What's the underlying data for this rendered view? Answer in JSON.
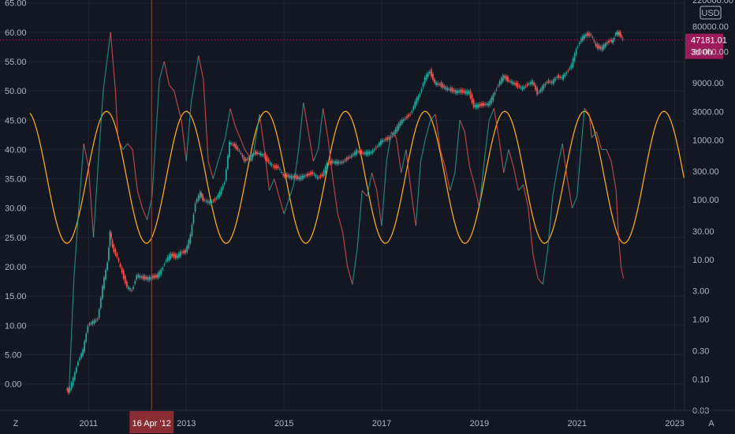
{
  "chart_data": {
    "type": "line",
    "currency": "USD",
    "left_axis": {
      "ticks": [
        "65.00",
        "60.00",
        "55.00",
        "50.00",
        "45.00",
        "40.00",
        "35.00",
        "30.00",
        "25.00",
        "20.00",
        "15.00",
        "10.00",
        "5.00",
        "0.00"
      ],
      "range": [
        -4.5,
        65.5
      ]
    },
    "right_axis": {
      "scale": "log",
      "ticks": [
        "220000.00",
        "80000.00",
        "30000.00",
        "9000.00",
        "3000.00",
        "1000.00",
        "300.00",
        "100.00",
        "30.00",
        "10.00",
        "3.00",
        "1.00",
        "0.30",
        "0.10",
        "0.03"
      ],
      "range": [
        0.03,
        220000
      ]
    },
    "x_axis": {
      "ticks": [
        "2011",
        "2013",
        "2015",
        "2017",
        "2019",
        "2021",
        "2023"
      ],
      "range": [
        2009.8,
        2023.2
      ]
    },
    "last_price": {
      "value": "47181.01",
      "countdown": "3d 0h"
    },
    "crosshair": {
      "date_label": "16 Apr '12",
      "x": 2012.29
    },
    "corner_labels": {
      "left": "Z",
      "right": "A"
    },
    "series": [
      {
        "kind": "price_candles",
        "color_up": "#26a69a",
        "color_down": "#ef5350",
        "points": [
          [
            2010.55,
            0.07
          ],
          [
            2010.6,
            0.06
          ],
          [
            2010.7,
            0.1
          ],
          [
            2010.8,
            0.2
          ],
          [
            2010.9,
            0.3
          ],
          [
            2011.0,
            0.8
          ],
          [
            2011.1,
            0.9
          ],
          [
            2011.2,
            1.0
          ],
          [
            2011.3,
            3.5
          ],
          [
            2011.4,
            9.0
          ],
          [
            2011.45,
            30.0
          ],
          [
            2011.5,
            16.0
          ],
          [
            2011.6,
            11.0
          ],
          [
            2011.7,
            6.0
          ],
          [
            2011.8,
            3.5
          ],
          [
            2011.9,
            3.0
          ],
          [
            2012.0,
            5.5
          ],
          [
            2012.1,
            5.0
          ],
          [
            2012.2,
            4.8
          ],
          [
            2012.3,
            5.0
          ],
          [
            2012.4,
            5.2
          ],
          [
            2012.5,
            6.5
          ],
          [
            2012.6,
            10.0
          ],
          [
            2012.7,
            12.0
          ],
          [
            2012.8,
            11.0
          ],
          [
            2012.9,
            13.0
          ],
          [
            2013.0,
            13.5
          ],
          [
            2013.1,
            25.0
          ],
          [
            2013.2,
            90.0
          ],
          [
            2013.3,
            130.0
          ],
          [
            2013.35,
            100.0
          ],
          [
            2013.5,
            90.0
          ],
          [
            2013.6,
            100.0
          ],
          [
            2013.7,
            130.0
          ],
          [
            2013.8,
            200.0
          ],
          [
            2013.9,
            900.0
          ],
          [
            2014.0,
            800.0
          ],
          [
            2014.1,
            650.0
          ],
          [
            2014.2,
            450.0
          ],
          [
            2014.3,
            500.0
          ],
          [
            2014.4,
            600.0
          ],
          [
            2014.5,
            600.0
          ],
          [
            2014.6,
            550.0
          ],
          [
            2014.7,
            430.0
          ],
          [
            2014.8,
            350.0
          ],
          [
            2014.9,
            350.0
          ],
          [
            2015.0,
            250.0
          ],
          [
            2015.1,
            250.0
          ],
          [
            2015.2,
            240.0
          ],
          [
            2015.3,
            230.0
          ],
          [
            2015.5,
            260.0
          ],
          [
            2015.6,
            280.0
          ],
          [
            2015.7,
            230.0
          ],
          [
            2015.8,
            260.0
          ],
          [
            2015.9,
            400.0
          ],
          [
            2016.0,
            430.0
          ],
          [
            2016.2,
            420.0
          ],
          [
            2016.4,
            550.0
          ],
          [
            2016.5,
            650.0
          ],
          [
            2016.6,
            600.0
          ],
          [
            2016.8,
            620.0
          ],
          [
            2016.9,
            750.0
          ],
          [
            2017.0,
            950.0
          ],
          [
            2017.2,
            1100.0
          ],
          [
            2017.4,
            2000.0
          ],
          [
            2017.6,
            2700.0
          ],
          [
            2017.7,
            4300.0
          ],
          [
            2017.8,
            6000.0
          ],
          [
            2017.9,
            11000.0
          ],
          [
            2018.0,
            14000.0
          ],
          [
            2018.1,
            9000.0
          ],
          [
            2018.2,
            8500.0
          ],
          [
            2018.3,
            7500.0
          ],
          [
            2018.4,
            7000.0
          ],
          [
            2018.5,
            6500.0
          ],
          [
            2018.6,
            6500.0
          ],
          [
            2018.7,
            6400.0
          ],
          [
            2018.8,
            6300.0
          ],
          [
            2018.9,
            3700.0
          ],
          [
            2019.0,
            3800.0
          ],
          [
            2019.2,
            4000.0
          ],
          [
            2019.3,
            5500.0
          ],
          [
            2019.4,
            8500.0
          ],
          [
            2019.5,
            11500.0
          ],
          [
            2019.6,
            10000.0
          ],
          [
            2019.7,
            9000.0
          ],
          [
            2019.8,
            8000.0
          ],
          [
            2019.9,
            7300.0
          ],
          [
            2020.0,
            8500.0
          ],
          [
            2020.1,
            9500.0
          ],
          [
            2020.2,
            6000.0
          ],
          [
            2020.3,
            7500.0
          ],
          [
            2020.4,
            9500.0
          ],
          [
            2020.5,
            9200.0
          ],
          [
            2020.6,
            11500.0
          ],
          [
            2020.7,
            11000.0
          ],
          [
            2020.8,
            13500.0
          ],
          [
            2020.9,
            18000.0
          ],
          [
            2021.0,
            33000.0
          ],
          [
            2021.1,
            50000.0
          ],
          [
            2021.2,
            58000.0
          ],
          [
            2021.3,
            57000.0
          ],
          [
            2021.4,
            37000.0
          ],
          [
            2021.5,
            34000.0
          ],
          [
            2021.6,
            40000.0
          ],
          [
            2021.7,
            47000.0
          ],
          [
            2021.75,
            45000.0
          ],
          [
            2021.8,
            62000.0
          ],
          [
            2021.85,
            61000.0
          ],
          [
            2021.9,
            57000.0
          ],
          [
            2021.95,
            47181.0
          ]
        ]
      },
      {
        "kind": "oscillator_left_axis",
        "color_up": "#26a69a",
        "color_down": "#ef5350",
        "points": [
          [
            2010.6,
            -1.0
          ],
          [
            2010.7,
            18.0
          ],
          [
            2010.8,
            30.0
          ],
          [
            2010.9,
            41.0
          ],
          [
            2011.0,
            37.0
          ],
          [
            2011.1,
            25.0
          ],
          [
            2011.2,
            38.0
          ],
          [
            2011.3,
            50.0
          ],
          [
            2011.45,
            60.0
          ],
          [
            2011.55,
            50.0
          ],
          [
            2011.6,
            42.0
          ],
          [
            2011.7,
            40.0
          ],
          [
            2011.8,
            41.0
          ],
          [
            2011.9,
            40.0
          ],
          [
            2012.0,
            33.0
          ],
          [
            2012.1,
            30.0
          ],
          [
            2012.2,
            28.0
          ],
          [
            2012.3,
            32.0
          ],
          [
            2012.45,
            52.0
          ],
          [
            2012.55,
            55.0
          ],
          [
            2012.65,
            51.0
          ],
          [
            2012.75,
            50.0
          ],
          [
            2012.9,
            45.0
          ],
          [
            2013.0,
            38.0
          ],
          [
            2013.1,
            48.0
          ],
          [
            2013.25,
            56.0
          ],
          [
            2013.35,
            52.0
          ],
          [
            2013.45,
            38.0
          ],
          [
            2013.55,
            35.0
          ],
          [
            2013.65,
            38.0
          ],
          [
            2013.8,
            42.0
          ],
          [
            2013.9,
            47.0
          ],
          [
            2014.0,
            44.0
          ],
          [
            2014.1,
            42.0
          ],
          [
            2014.2,
            40.0
          ],
          [
            2014.35,
            38.0
          ],
          [
            2014.5,
            46.0
          ],
          [
            2014.6,
            40.0
          ],
          [
            2014.7,
            33.0
          ],
          [
            2014.8,
            35.0
          ],
          [
            2014.9,
            32.0
          ],
          [
            2015.0,
            29.0
          ],
          [
            2015.2,
            34.0
          ],
          [
            2015.3,
            40.0
          ],
          [
            2015.4,
            48.0
          ],
          [
            2015.5,
            43.0
          ],
          [
            2015.6,
            38.0
          ],
          [
            2015.7,
            40.0
          ],
          [
            2015.8,
            47.0
          ],
          [
            2015.9,
            42.0
          ],
          [
            2016.0,
            35.0
          ],
          [
            2016.1,
            29.0
          ],
          [
            2016.2,
            26.0
          ],
          [
            2016.3,
            20.0
          ],
          [
            2016.4,
            17.0
          ],
          [
            2016.5,
            23.0
          ],
          [
            2016.6,
            33.0
          ],
          [
            2016.7,
            32.0
          ],
          [
            2016.8,
            36.0
          ],
          [
            2016.9,
            33.0
          ],
          [
            2017.0,
            27.0
          ],
          [
            2017.1,
            38.0
          ],
          [
            2017.2,
            43.0
          ],
          [
            2017.3,
            42.0
          ],
          [
            2017.4,
            36.0
          ],
          [
            2017.5,
            40.0
          ],
          [
            2017.6,
            33.0
          ],
          [
            2017.7,
            27.0
          ],
          [
            2017.8,
            38.0
          ],
          [
            2017.9,
            42.0
          ],
          [
            2018.0,
            45.0
          ],
          [
            2018.1,
            46.0
          ],
          [
            2018.2,
            40.0
          ],
          [
            2018.3,
            37.0
          ],
          [
            2018.4,
            33.0
          ],
          [
            2018.5,
            36.0
          ],
          [
            2018.6,
            45.0
          ],
          [
            2018.7,
            43.0
          ],
          [
            2018.8,
            37.0
          ],
          [
            2018.9,
            34.0
          ],
          [
            2019.0,
            30.0
          ],
          [
            2019.1,
            38.0
          ],
          [
            2019.2,
            45.0
          ],
          [
            2019.3,
            47.0
          ],
          [
            2019.4,
            42.0
          ],
          [
            2019.5,
            36.0
          ],
          [
            2019.6,
            40.0
          ],
          [
            2019.7,
            37.0
          ],
          [
            2019.8,
            33.0
          ],
          [
            2019.9,
            34.0
          ],
          [
            2020.0,
            30.0
          ],
          [
            2020.1,
            22.0
          ],
          [
            2020.2,
            18.0
          ],
          [
            2020.3,
            17.0
          ],
          [
            2020.4,
            23.0
          ],
          [
            2020.5,
            32.0
          ],
          [
            2020.6,
            37.0
          ],
          [
            2020.7,
            41.0
          ],
          [
            2020.8,
            35.0
          ],
          [
            2020.9,
            30.0
          ],
          [
            2021.0,
            32.0
          ],
          [
            2021.1,
            42.0
          ],
          [
            2021.15,
            47.0
          ],
          [
            2021.25,
            46.0
          ],
          [
            2021.3,
            42.0
          ],
          [
            2021.4,
            43.0
          ],
          [
            2021.5,
            40.0
          ],
          [
            2021.6,
            40.0
          ],
          [
            2021.7,
            38.0
          ],
          [
            2021.8,
            33.0
          ],
          [
            2021.85,
            25.0
          ],
          [
            2021.9,
            20.0
          ],
          [
            2021.95,
            18.0
          ]
        ]
      },
      {
        "kind": "sine_wave_left_axis",
        "color": "#f5a623",
        "x": [
          2009.8,
          2023.2
        ],
        "center": 35.25,
        "amplitude": 11.25,
        "period_years": 1.63,
        "peak_at": 2011.37
      }
    ]
  }
}
